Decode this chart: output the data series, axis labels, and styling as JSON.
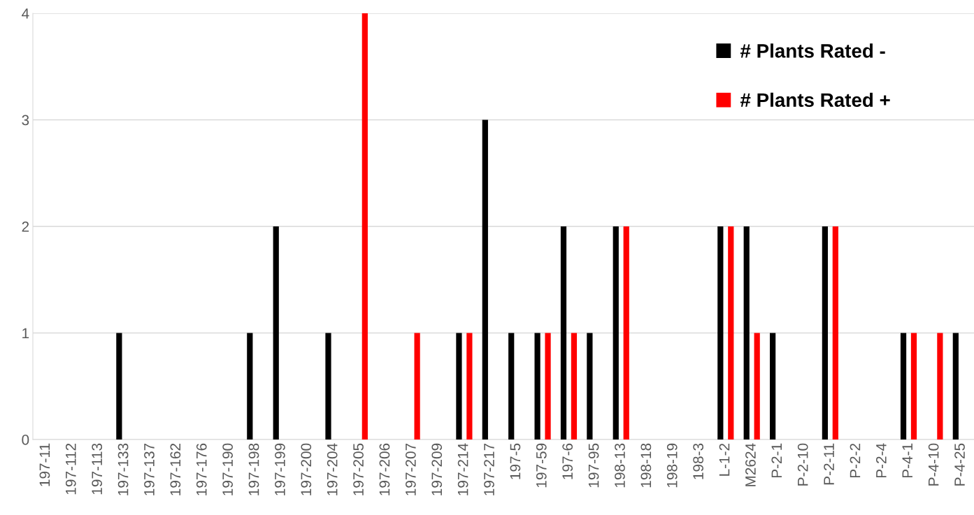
{
  "chart_data": {
    "type": "bar",
    "categories": [
      "197-11",
      "197-112",
      "197-113",
      "197-133",
      "197-137",
      "197-162",
      "197-176",
      "197-190",
      "197-198",
      "197-199",
      "197-200",
      "197-204",
      "197-205",
      "197-206",
      "197-207",
      "197-209",
      "197-214",
      "197-217",
      "197-5",
      "197-59",
      "197-6",
      "197-95",
      "198-13",
      "198-18",
      "198-19",
      "198-3",
      "L-1-2",
      "M2624",
      "P-2-1",
      "P-2-10",
      "P-2-11",
      "P-2-2",
      "P-2-4",
      "P-4-1",
      "P-4-10",
      "P-4-25"
    ],
    "series": [
      {
        "name": "# Plants Rated -",
        "color": "#000000",
        "values": [
          0,
          0,
          0,
          1,
          0,
          0,
          0,
          0,
          1,
          2,
          0,
          1,
          0,
          0,
          0,
          0,
          1,
          3,
          1,
          1,
          2,
          1,
          2,
          0,
          0,
          0,
          2,
          2,
          1,
          0,
          2,
          0,
          0,
          1,
          0,
          1
        ]
      },
      {
        "name": "# Plants Rated +",
        "color": "#ff0000",
        "values": [
          0,
          0,
          0,
          0,
          0,
          0,
          0,
          0,
          0,
          0,
          0,
          0,
          4,
          0,
          1,
          0,
          1,
          0,
          0,
          1,
          1,
          0,
          2,
          0,
          0,
          0,
          2,
          1,
          0,
          0,
          2,
          0,
          0,
          1,
          1,
          0
        ]
      }
    ],
    "ylim": [
      0,
      4
    ],
    "yticks": [
      0,
      1,
      2,
      3,
      4
    ],
    "grid": "y",
    "legend": "top right"
  }
}
